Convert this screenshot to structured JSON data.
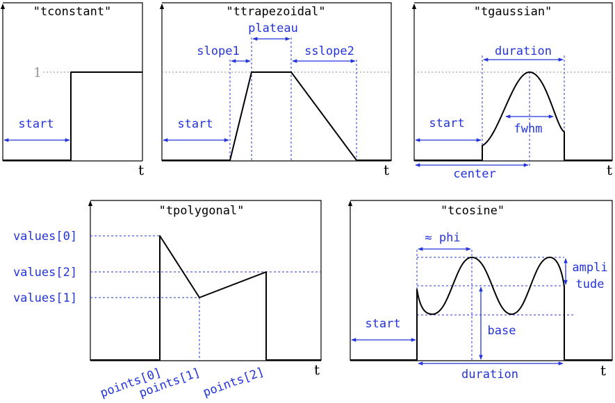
{
  "axis_label": "t",
  "one_label": "1",
  "tconstant": {
    "title": "\"tconstant\"",
    "start": "start"
  },
  "ttrapezoidal": {
    "title": "\"ttrapezoidal\"",
    "plateau": "plateau",
    "slope1": "slope1",
    "slope2": "sslope2",
    "start": "start"
  },
  "tgaussian": {
    "title": "\"tgaussian\"",
    "duration": "duration",
    "start": "start",
    "fwhm": "fwhm",
    "center": "center"
  },
  "tpolygonal": {
    "title": "\"tpolygonal\"",
    "values": [
      "values[0]",
      "values[2]",
      "values[1]"
    ],
    "points": [
      "points[0]",
      "points[1]",
      "points[2]"
    ]
  },
  "tcosine": {
    "title": "\"tcosine\"",
    "phi": "≈ phi",
    "ampli": "ampli",
    "tude": "tude",
    "start": "start",
    "base": "base",
    "duration": "duration"
  }
}
